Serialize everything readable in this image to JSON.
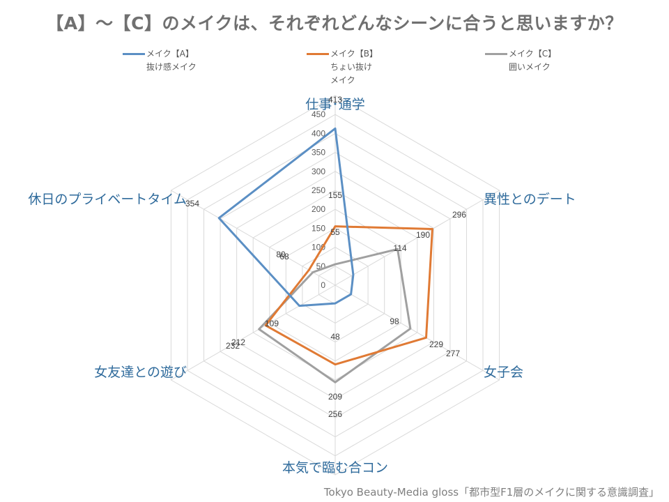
{
  "title": "【A】～【C】のメイクは、それぞれどんなシーンに合うと思いますか？",
  "source": "Tokyo Beauty-Media gloss「都市型F1層のメイクに関する意識調査」",
  "colors": {
    "A": "#5b8fc4",
    "B": "#e07a34",
    "C": "#a0a0a0",
    "axis_label": "#2e6a9b",
    "grid": "#d9d9d9"
  },
  "chart_data": {
    "type": "radar",
    "categories": [
      "仕事･通学",
      "異性とのデート",
      "女子会",
      "本気で臨む合コン",
      "女友達との遊び",
      "休日のプライベートタイム"
    ],
    "ticks": [
      "0",
      "50",
      "100",
      "150",
      "200",
      "250",
      "300",
      "350",
      "400",
      "450"
    ],
    "rmax": 500,
    "series": [
      {
        "name": "メイク【A】\n抜け感メイク",
        "color": "#5b8fc4",
        "values": [
          413,
          55,
          48,
          48,
          109,
          354
        ],
        "labels": [
          "413",
          "",
          "",
          "48",
          "",
          "354"
        ]
      },
      {
        "name": "メイク【B】\nちょい抜け\nメイク",
        "color": "#e07a34",
        "values": [
          155,
          296,
          277,
          209,
          212,
          80
        ],
        "labels": [
          "155",
          "296",
          "277",
          "209",
          "212",
          "80"
        ]
      },
      {
        "name": "メイク【C】\n囲いメイク",
        "color": "#a0a0a0",
        "values": [
          55,
          190,
          229,
          256,
          232,
          68
        ],
        "labels": [
          "55",
          "190",
          "229",
          "256",
          "232",
          "68"
        ]
      }
    ],
    "extra_labels": [
      "114",
      "98",
      "109"
    ]
  }
}
